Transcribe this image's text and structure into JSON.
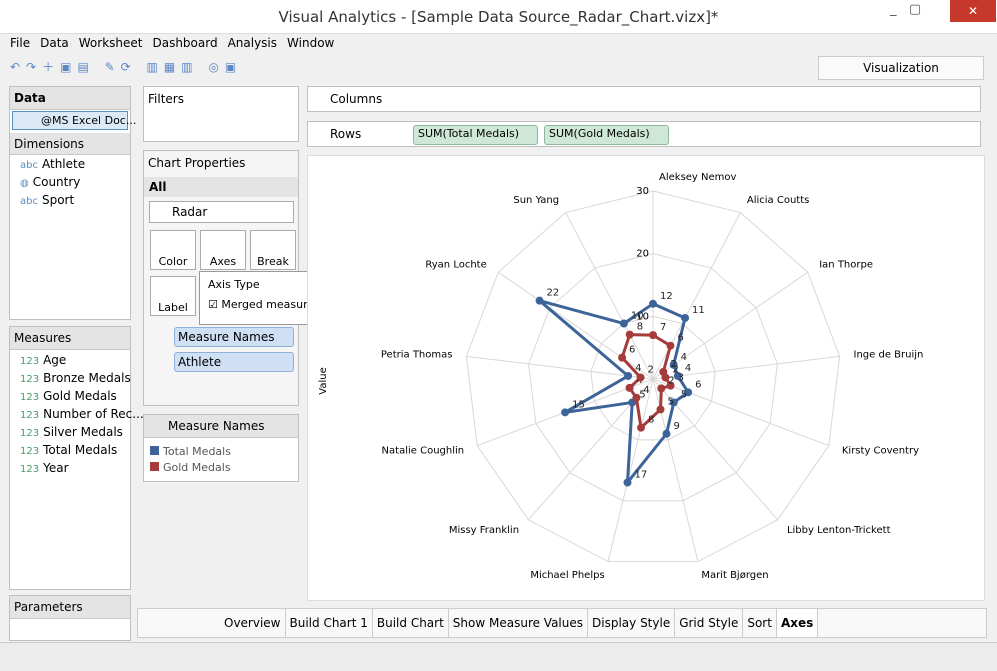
{
  "window": {
    "title": "Visual Analytics - [Sample Data Source_Radar_Chart.vizx]*"
  },
  "menu": [
    "File",
    "Data",
    "Worksheet",
    "Dashboard",
    "Analysis",
    "Window"
  ],
  "toolbar": {
    "visualization": "Visualization"
  },
  "data_panel": {
    "title": "Data",
    "source": "@MS Excel Doc...",
    "dimensions_title": "Dimensions",
    "dimensions": [
      {
        "kind": "abc",
        "name": "Athlete"
      },
      {
        "name": "Country"
      },
      {
        "kind": "abc",
        "name": "Sport"
      }
    ],
    "measures_title": "Measures",
    "measures": [
      {
        "kind": "123",
        "name": "Age"
      },
      {
        "kind": "123",
        "name": "Bronze Medals"
      },
      {
        "kind": "123",
        "name": "Gold Medals"
      },
      {
        "kind": "123",
        "name": "Number of Rec..."
      },
      {
        "kind": "123",
        "name": "Silver Medals"
      },
      {
        "kind": "123",
        "name": "Total Medals"
      },
      {
        "kind": "123",
        "name": "Year"
      }
    ],
    "parameters_title": "Parameters"
  },
  "filters": {
    "title": "Filters"
  },
  "chart_properties": {
    "title": "Chart Properties",
    "section": "All",
    "chart_type": "Radar",
    "buttons": [
      "Color",
      "Axes",
      "Break",
      "Label"
    ],
    "popup": {
      "title": "Axis Type",
      "checkbox": "Merged measure"
    },
    "color_field": "Measure Names",
    "label_field": "Athlete"
  },
  "legend": {
    "title": "Measure Names"
  },
  "shelves": {
    "columns": "Columns",
    "rows": "Rows",
    "row_pills": [
      "SUM(Total Medals)",
      "SUM(Gold Medals)"
    ]
  },
  "chart_data": {
    "type": "radar",
    "y_label": "Value",
    "categories": [
      "Aleksey Nemov",
      "Alicia Coutts",
      "Ian Thorpe",
      "Inge de Bruijn",
      "Kirsty Coventry",
      "Libby Lenton-Trickett",
      "Marit Bjørgen",
      "Michael Phelps",
      "Missy Franklin",
      "Natalie Coughlin",
      "Petria Thomas",
      "Ryan Lochte",
      "Sun Yang"
    ],
    "series": [
      {
        "name": "Total Medals",
        "color": "#3d6499",
        "values": [
          12,
          11,
          4,
          4,
          6,
          5,
          9,
          17,
          5,
          15,
          4,
          22,
          10
        ]
      },
      {
        "name": "Gold Medals",
        "color": "#a63b3b",
        "values": [
          7,
          6,
          2,
          2,
          3,
          2,
          5,
          8,
          4,
          4,
          2,
          6,
          8
        ]
      }
    ],
    "ylim": [
      0,
      30
    ],
    "yticks": [
      10,
      20,
      30
    ],
    "grid": true
  },
  "tabs": [
    "Overview",
    "Build Chart 1",
    "Build Chart",
    "Show Measure Values",
    "Display Style",
    "Grid Style",
    "Sort",
    "Axes"
  ]
}
